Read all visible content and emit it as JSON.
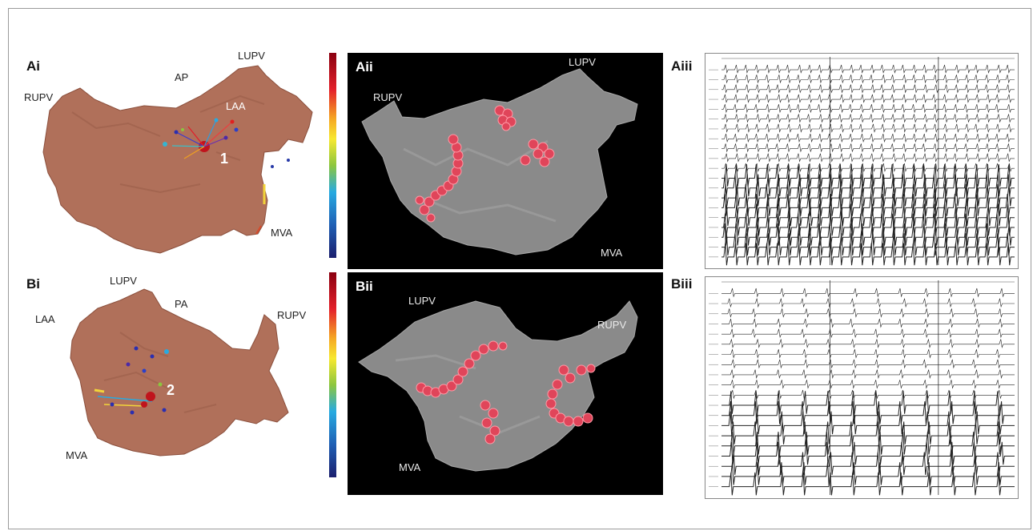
{
  "colors": {
    "tissue": "#b0705a",
    "mesh": "#8a8a8a",
    "lesion": "#e0455a",
    "background_dark": "#000000"
  },
  "panels": {
    "ai": {
      "label": "Ai",
      "annotations": {
        "rupv": "RUPV",
        "ap": "AP",
        "lupv": "LUPV",
        "laa": "LAA",
        "mva": "MVA",
        "site": "1"
      }
    },
    "aii": {
      "label": "Aii",
      "annotations": {
        "rupv": "RUPV",
        "lupv": "LUPV",
        "mva": "MVA"
      }
    },
    "aiii": {
      "label": "Aiii"
    },
    "bi": {
      "label": "Bi",
      "annotations": {
        "lupv": "LUPV",
        "pa": "PA",
        "laa": "LAA",
        "rupv": "RUPV",
        "mva": "MVA",
        "site": "2"
      }
    },
    "bii": {
      "label": "Bii",
      "annotations": {
        "lupv": "LUPV",
        "rupv": "RUPV",
        "mva": "MVA"
      }
    },
    "biii": {
      "label": "Biii"
    }
  }
}
